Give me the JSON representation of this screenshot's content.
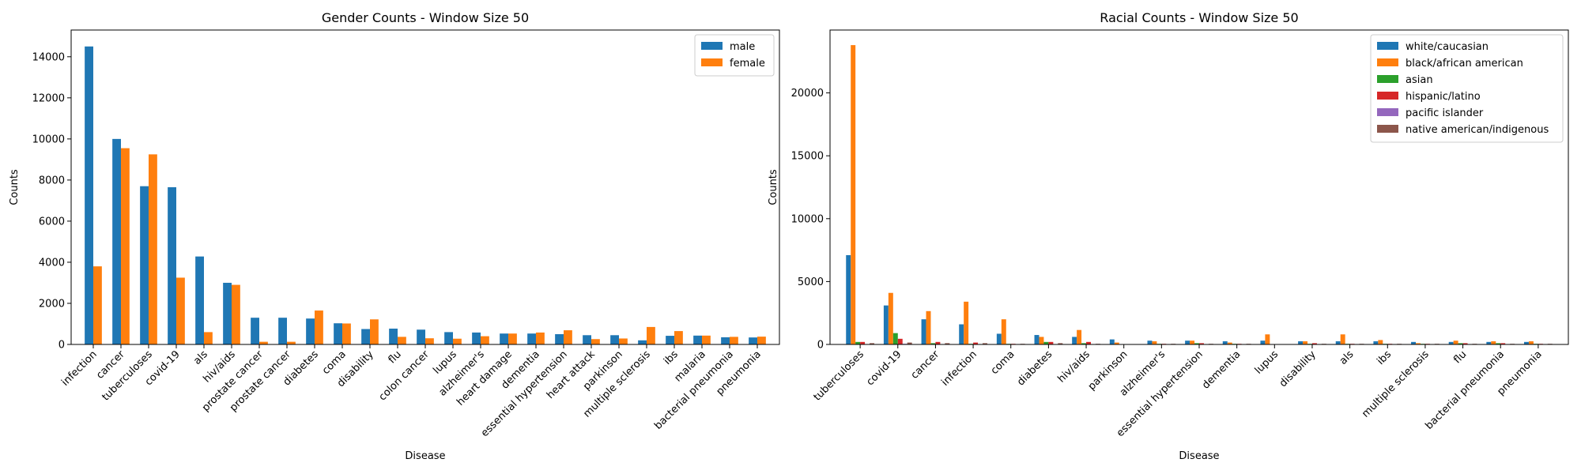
{
  "chart_data": [
    {
      "type": "bar",
      "title": "Gender Counts - Window Size 50",
      "xlabel": "Disease",
      "ylabel": "Counts",
      "ylim": [
        0,
        15300
      ],
      "yticks": [
        0,
        2000,
        4000,
        6000,
        8000,
        10000,
        12000,
        14000
      ],
      "legend": "top-right",
      "grid": false,
      "categories": [
        "infection",
        "cancer",
        "tuberculoses",
        "covid-19",
        "als",
        "hiv/aids",
        "prostate cancer",
        "prostate cancer",
        "diabetes",
        "coma",
        "disability",
        "flu",
        "colon cancer",
        "lupus",
        "alzheimer's",
        "heart damage",
        "dementia",
        "essential hypertension",
        "heart attack",
        "parkinson",
        "multiple sclerosis",
        "ibs",
        "malaria",
        "bacterial pneumonia",
        "pneumonia"
      ],
      "series": [
        {
          "name": "male",
          "color": "#1f77b4",
          "values": [
            14500,
            10000,
            7700,
            7650,
            4280,
            3000,
            1300,
            1300,
            1260,
            1030,
            750,
            770,
            720,
            600,
            580,
            530,
            530,
            500,
            450,
            450,
            200,
            420,
            430,
            350,
            340
          ]
        },
        {
          "name": "female",
          "color": "#ff7f0e",
          "values": [
            3800,
            9550,
            9250,
            3250,
            600,
            2900,
            130,
            130,
            1650,
            1020,
            1220,
            370,
            300,
            280,
            400,
            530,
            580,
            690,
            260,
            290,
            850,
            650,
            430,
            370,
            380
          ]
        }
      ]
    },
    {
      "type": "bar",
      "title": "Racial Counts - Window Size 50",
      "xlabel": "Disease",
      "ylabel": "Counts",
      "ylim": [
        0,
        25000
      ],
      "yticks": [
        0,
        5000,
        10000,
        15000,
        20000
      ],
      "legend": "top-right",
      "grid": false,
      "categories": [
        "tuberculoses",
        "covid-19",
        "cancer",
        "infection",
        "coma",
        "diabetes",
        "hiv/aids",
        "parkinson",
        "alzheimer's",
        "essential hypertension",
        "dementia",
        "lupus",
        "disability",
        "als",
        "ibs",
        "multiple sclerosis",
        "flu",
        "bacterial pneumonia",
        "pneumonia"
      ],
      "series": [
        {
          "name": "white/caucasian",
          "color": "#1f77b4",
          "values": [
            7100,
            3100,
            2000,
            1600,
            850,
            750,
            600,
            400,
            300,
            300,
            250,
            300,
            250,
            250,
            250,
            200,
            200,
            200,
            200
          ]
        },
        {
          "name": "black/african american",
          "color": "#ff7f0e",
          "values": [
            23800,
            4100,
            2650,
            3400,
            2000,
            600,
            1150,
            150,
            250,
            300,
            150,
            800,
            250,
            800,
            350,
            100,
            300,
            250,
            250
          ]
        },
        {
          "name": "asian",
          "color": "#2ca02c",
          "values": [
            200,
            900,
            100,
            50,
            50,
            200,
            100,
            30,
            50,
            100,
            50,
            30,
            50,
            50,
            50,
            50,
            100,
            100,
            50
          ]
        },
        {
          "name": "hispanic/latino",
          "color": "#d62728",
          "values": [
            200,
            450,
            200,
            150,
            50,
            200,
            200,
            30,
            50,
            100,
            50,
            30,
            100,
            50,
            50,
            50,
            100,
            100,
            50
          ]
        },
        {
          "name": "pacific islander",
          "color": "#9467bd",
          "values": [
            30,
            50,
            30,
            30,
            20,
            30,
            30,
            10,
            20,
            30,
            20,
            10,
            20,
            20,
            20,
            20,
            30,
            30,
            20
          ]
        },
        {
          "name": "native american/indigenous",
          "color": "#8c564b",
          "values": [
            100,
            150,
            100,
            100,
            50,
            100,
            50,
            30,
            50,
            50,
            50,
            30,
            50,
            50,
            50,
            50,
            50,
            50,
            50
          ]
        }
      ]
    }
  ]
}
